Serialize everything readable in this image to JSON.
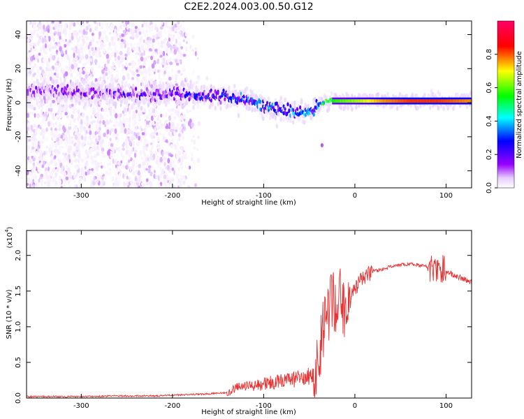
{
  "title": "C2E2.2024.003.00.50.G12",
  "chart_data": [
    {
      "type": "heatmap",
      "title": "C2E2.2024.003.00.50.G12",
      "xlabel": "Height of straight line (km)",
      "ylabel": "Frequency (Hz)",
      "xlim": [
        -360,
        128
      ],
      "ylim": [
        -50,
        48
      ],
      "xticks": [
        -300,
        -200,
        -100,
        0,
        100
      ],
      "yticks": [
        -40,
        -20,
        0,
        20,
        40
      ],
      "colorbar": {
        "label": "Normalized spectral amplitude",
        "range": [
          0,
          1
        ],
        "ticks": [
          0.0,
          0.2,
          0.4,
          0.6,
          0.8
        ],
        "colormap": [
          "#ffffff",
          "#e6ccff",
          "#9900ff",
          "#0000ff",
          "#00ffff",
          "#00ff00",
          "#ffff00",
          "#ff0000",
          "#ff0066"
        ]
      },
      "ridge": {
        "x": [
          -340,
          -300,
          -250,
          -200,
          -150,
          -120,
          -100,
          -80,
          -60,
          -45,
          -40,
          -30,
          -20,
          0,
          30,
          60,
          90,
          128
        ],
        "frequency": [
          7,
          6,
          5,
          5,
          4,
          2,
          -2,
          -4,
          -6,
          -5,
          -1,
          1,
          1,
          1,
          1,
          1,
          1,
          1
        ],
        "amplitude": [
          0.2,
          0.2,
          0.22,
          0.25,
          0.3,
          0.35,
          0.35,
          0.35,
          0.4,
          0.35,
          0.45,
          0.6,
          0.65,
          0.7,
          0.8,
          0.85,
          0.85,
          0.8
        ]
      },
      "noise_region_xmax": -185,
      "grid": false,
      "legend": "right colorbar"
    },
    {
      "type": "line",
      "xlabel": "Height of straight line (km)",
      "ylabel": "SNR (10 * v/v)",
      "y_multiplier": "(x10",
      "y_multiplier_exp": "4",
      "xlim": [
        -360,
        128
      ],
      "ylim": [
        0,
        2.35
      ],
      "xticks": [
        -300,
        -200,
        -100,
        0,
        100
      ],
      "yticks": [
        0.0,
        0.5,
        1.0,
        1.5,
        2.0
      ],
      "color": "#e83030",
      "series": [
        {
          "x": [
            -360,
            -330,
            -300,
            -260,
            -220,
            -200,
            -180,
            -160,
            -140,
            -130,
            -120,
            -110,
            -100,
            -90,
            -80,
            -70,
            -60,
            -50,
            -45,
            -40,
            -35,
            -30,
            -25,
            -20,
            -15,
            -10,
            -5,
            0,
            10,
            20,
            30,
            40,
            60,
            80,
            85,
            90,
            95,
            100,
            110,
            128
          ],
          "y": [
            0.02,
            0.02,
            0.02,
            0.03,
            0.03,
            0.04,
            0.05,
            0.06,
            0.08,
            0.15,
            0.16,
            0.18,
            0.2,
            0.22,
            0.25,
            0.25,
            0.28,
            0.3,
            0.35,
            0.6,
            0.9,
            1.2,
            1.35,
            1.3,
            1.4,
            1.25,
            1.35,
            1.55,
            1.7,
            1.78,
            1.8,
            1.85,
            1.88,
            1.85,
            1.8,
            1.75,
            1.8,
            1.77,
            1.72,
            1.62
          ]
        }
      ],
      "grid": false
    }
  ]
}
